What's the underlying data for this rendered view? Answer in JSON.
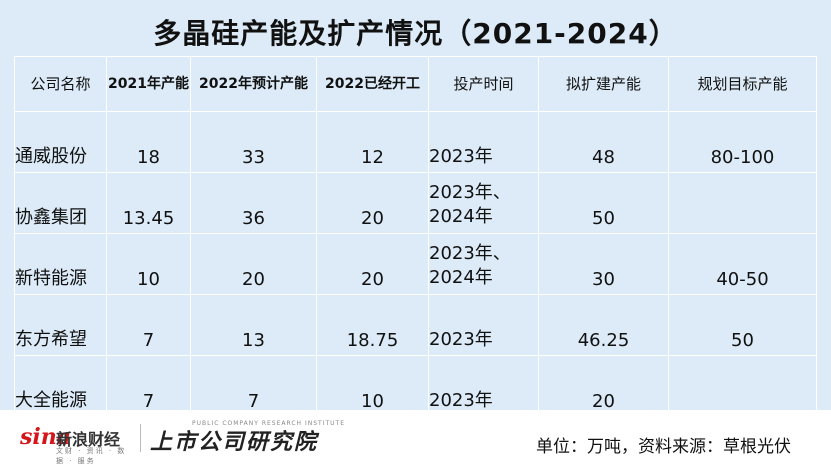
{
  "title": "多晶硅产能及扩产情况（2021-2024）",
  "headers": [
    "公司名称",
    "2021年产能",
    "2022年预计产能",
    "2022已经开工",
    "投产时间",
    "拟扩建产能",
    "规划目标产能"
  ],
  "rows": [
    {
      "name": "通威股份",
      "cap2021": "18",
      "cap2022": "33",
      "started2022": "12",
      "time": "2023年",
      "expand": "48",
      "target": "80-100"
    },
    {
      "name": "协鑫集团",
      "cap2021": "13.45",
      "cap2022": "36",
      "started2022": "20",
      "time": "2023年、2024年",
      "time_line1": "2023年、",
      "time_line2": "2024年",
      "expand": "50",
      "target": ""
    },
    {
      "name": "新特能源",
      "cap2021": "10",
      "cap2022": "20",
      "started2022": "20",
      "time": "2023年、2024年",
      "time_line1": "2023年、",
      "time_line2": "2024年",
      "expand": "30",
      "target": "40-50"
    },
    {
      "name": "东方希望",
      "cap2021": "7",
      "cap2022": "13",
      "started2022": "18.75",
      "time": "2023年",
      "expand": "46.25",
      "target": "50"
    },
    {
      "name": "大全能源",
      "cap2021": "7",
      "cap2022": "7",
      "started2022": "10",
      "time": "2023年",
      "expand": "20",
      "target": ""
    }
  ],
  "colors": {
    "background": "#dcebf7",
    "highlight": "#e0201c"
  },
  "footer": {
    "sina_logo": "sina",
    "sina_name": "新浪财经",
    "sina_sub": "文财 · 资讯 · 数据 · 服务",
    "brand": "上市公司研究院",
    "brand_en": "PUBLIC COMPANY RESEARCH INSTITUTE",
    "unit_note": "单位：万吨，资料来源：草根光伏"
  }
}
